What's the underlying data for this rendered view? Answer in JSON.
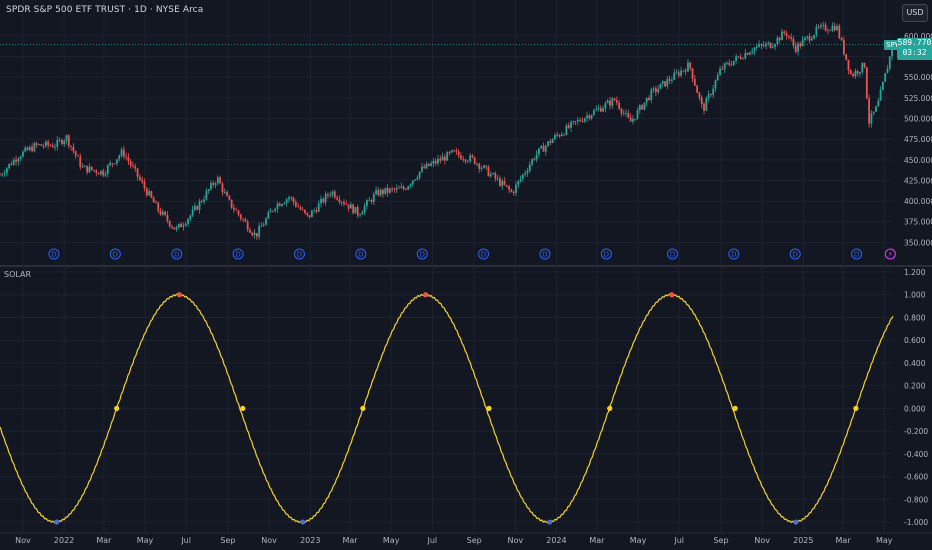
{
  "header": {
    "title": "SPDR S&P 500 ETF TRUST · 1D · NYSE Arca",
    "currency_label": "USD"
  },
  "badges": {
    "ticker": "SPY",
    "last_price": "589.770",
    "countdown": "03:32"
  },
  "colors": {
    "background": "#131722",
    "grid": "#1e2230",
    "up": "#26a69a",
    "down": "#ef5350",
    "osc_line": "#f5d21f",
    "osc_mid": "#f5d21f",
    "osc_peak": "#ef5350",
    "osc_trough": "#4a6cd4",
    "marker": "#2962ff"
  },
  "chart_data": [
    {
      "type": "candlestick",
      "title": "SPDR S&P 500 ETF TRUST · 1D · NYSE Arca",
      "ylim": [
        325,
        612
      ],
      "y_ticks": [
        350,
        375,
        400,
        425,
        450,
        475,
        500,
        525,
        550,
        575,
        600
      ],
      "tick_labels_y": [
        "350.000",
        "375.000",
        "400.000",
        "425.000",
        "450.000",
        "475.000",
        "500.000",
        "525.000",
        "550.000",
        "575.000",
        "600.000"
      ],
      "x_start": "2021-09-28",
      "x_end": "2025-05-14",
      "close_path": [
        [
          "2021-09-28",
          432
        ],
        [
          "2021-10-25",
          455
        ],
        [
          "2021-11-20",
          467
        ],
        [
          "2021-12-20",
          468
        ],
        [
          "2022-01-04",
          478
        ],
        [
          "2022-01-28",
          440
        ],
        [
          "2022-02-28",
          435
        ],
        [
          "2022-03-29",
          460
        ],
        [
          "2022-05-01",
          415
        ],
        [
          "2022-05-20",
          390
        ],
        [
          "2022-06-16",
          365
        ],
        [
          "2022-07-10",
          385
        ],
        [
          "2022-08-16",
          428
        ],
        [
          "2022-09-01",
          400
        ],
        [
          "2022-10-12",
          358
        ],
        [
          "2022-11-10",
          395
        ],
        [
          "2022-12-01",
          405
        ],
        [
          "2022-12-28",
          380
        ],
        [
          "2023-02-01",
          412
        ],
        [
          "2023-03-13",
          385
        ],
        [
          "2023-04-10",
          410
        ],
        [
          "2023-05-20",
          415
        ],
        [
          "2023-06-15",
          438
        ],
        [
          "2023-07-31",
          458
        ],
        [
          "2023-08-31",
          450
        ],
        [
          "2023-10-27",
          410
        ],
        [
          "2023-11-30",
          455
        ],
        [
          "2023-12-29",
          477
        ],
        [
          "2024-02-08",
          500
        ],
        [
          "2024-03-28",
          523
        ],
        [
          "2024-04-19",
          495
        ],
        [
          "2024-05-20",
          530
        ],
        [
          "2024-07-16",
          565
        ],
        [
          "2024-08-05",
          510
        ],
        [
          "2024-09-01",
          560
        ],
        [
          "2024-10-18",
          585
        ],
        [
          "2024-11-15",
          590
        ],
        [
          "2024-12-06",
          605
        ],
        [
          "2024-12-20",
          585
        ],
        [
          "2025-01-23",
          608
        ],
        [
          "2025-02-19",
          612
        ],
        [
          "2025-03-13",
          552
        ],
        [
          "2025-04-02",
          565
        ],
        [
          "2025-04-08",
          495
        ],
        [
          "2025-04-21",
          515
        ],
        [
          "2025-05-14",
          589.77
        ]
      ],
      "dividend_markers": [
        "2021-12-17",
        "2022-03-18",
        "2022-06-17",
        "2022-09-16",
        "2022-12-16",
        "2023-03-17",
        "2023-06-16",
        "2023-09-15",
        "2023-12-15",
        "2024-03-15",
        "2024-06-21",
        "2024-09-20",
        "2024-12-20",
        "2025-03-21"
      ],
      "dividend_symbol": "D",
      "event_marker": {
        "date": "2025-05-10",
        "symbol": "⚡"
      }
    },
    {
      "type": "line",
      "name": "SOLAR",
      "ylim": [
        -1.07,
        1.2
      ],
      "y_ticks": [
        -1.0,
        -0.8,
        -0.6,
        -0.4,
        -0.2,
        0.0,
        0.2,
        0.4,
        0.6,
        0.8,
        1.0,
        1.2
      ],
      "tick_labels_y": [
        "-1.000",
        "-0.800",
        "-0.600",
        "-0.400",
        "-0.200",
        "0.000",
        "0.200",
        "0.400",
        "0.600",
        "0.800",
        "1.000",
        "1.200"
      ],
      "function": "sin(2*pi*(t - 2022-03-20)/365.25)",
      "x_start": "2021-09-28",
      "x_end": "2025-05-14",
      "peaks": [
        "2022-06-21",
        "2023-06-21",
        "2024-06-20"
      ],
      "troughs": [
        "2021-12-21",
        "2022-12-21",
        "2023-12-22",
        "2024-12-21"
      ],
      "zero_crossings": [
        "2021-09-22",
        "2022-03-20",
        "2022-09-23",
        "2023-03-20",
        "2023-09-23",
        "2024-03-20",
        "2024-09-22",
        "2025-03-20"
      ]
    }
  ],
  "x_axis": {
    "ticks": [
      {
        "date": "2021-11-01",
        "label": "Nov"
      },
      {
        "date": "2022-01-01",
        "label": "2022"
      },
      {
        "date": "2022-03-01",
        "label": "Mar"
      },
      {
        "date": "2022-05-01",
        "label": "May"
      },
      {
        "date": "2022-07-01",
        "label": "Jul"
      },
      {
        "date": "2022-09-01",
        "label": "Sep"
      },
      {
        "date": "2022-11-01",
        "label": "Nov"
      },
      {
        "date": "2023-01-01",
        "label": "2023"
      },
      {
        "date": "2023-03-01",
        "label": "Mar"
      },
      {
        "date": "2023-05-01",
        "label": "May"
      },
      {
        "date": "2023-07-01",
        "label": "Jul"
      },
      {
        "date": "2023-09-01",
        "label": "Sep"
      },
      {
        "date": "2023-11-01",
        "label": "Nov"
      },
      {
        "date": "2024-01-01",
        "label": "2024"
      },
      {
        "date": "2024-03-01",
        "label": "Mar"
      },
      {
        "date": "2024-05-01",
        "label": "May"
      },
      {
        "date": "2024-07-01",
        "label": "Jul"
      },
      {
        "date": "2024-09-01",
        "label": "Sep"
      },
      {
        "date": "2024-11-01",
        "label": "Nov"
      },
      {
        "date": "2025-01-01",
        "label": "2025"
      },
      {
        "date": "2025-03-01",
        "label": "Mar"
      },
      {
        "date": "2025-05-01",
        "label": "May"
      }
    ]
  },
  "indicator": {
    "name": "SOLAR"
  }
}
